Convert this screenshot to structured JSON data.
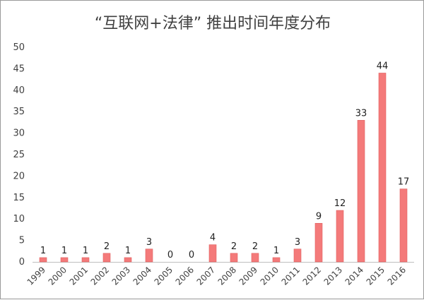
{
  "chart_data": {
    "type": "bar",
    "title": "“互联网+法律” 推出时间年度分布",
    "xlabel": "",
    "ylabel": "",
    "ylim": [
      0,
      50
    ],
    "yticks": [
      0,
      5,
      10,
      15,
      20,
      25,
      30,
      35,
      40,
      45,
      50
    ],
    "grid": false,
    "legend": "none",
    "colors": {
      "bar": "#f47a7a",
      "bar_edge": "#e06060",
      "axis": "#bfbfbf"
    },
    "categories": [
      "1999",
      "2000",
      "2001",
      "2002",
      "2003",
      "2004",
      "2005",
      "2006",
      "2007",
      "2008",
      "2009",
      "2010",
      "2011",
      "2012",
      "2013",
      "2014",
      "2015",
      "2016"
    ],
    "values": [
      1,
      1,
      1,
      2,
      1,
      3,
      0,
      0,
      4,
      2,
      2,
      1,
      3,
      9,
      12,
      33,
      44,
      17
    ],
    "data_labels": [
      "1",
      "1",
      "1",
      "2",
      "1",
      "3",
      "0",
      "0",
      "4",
      "2",
      "2",
      "1",
      "3",
      "9",
      "12",
      "33",
      "44",
      "17"
    ]
  }
}
